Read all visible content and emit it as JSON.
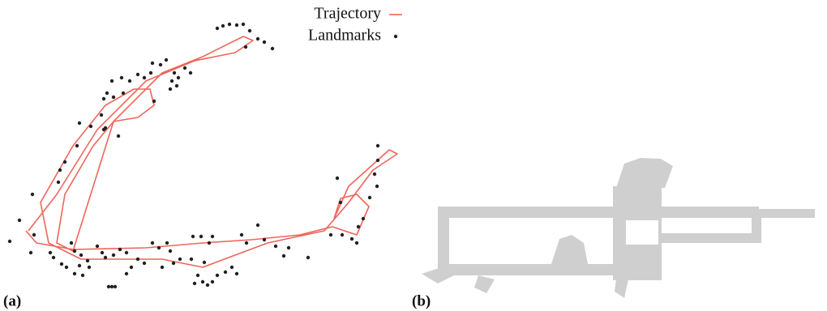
{
  "panels": [
    {
      "label": "(a)"
    },
    {
      "label": "(b)"
    }
  ],
  "chart_data": {
    "type": "scatter",
    "legend": "upper right",
    "xlim": [
      0,
      500
    ],
    "ylim": [
      384,
      0
    ],
    "series": [
      {
        "name": "Trajectory",
        "color": "#f0655a",
        "type": "line",
        "x": [
          32,
          45,
          90,
          180,
          250,
          310,
          370,
          410,
          440,
          455,
          440,
          420,
          412,
          430,
          480,
          490,
          460,
          430,
          400,
          330,
          250,
          200,
          150,
          100,
          60,
          50,
          90,
          130,
          165,
          185,
          190,
          170,
          140,
          115,
          80,
          70,
          90,
          140,
          200,
          250,
          300,
          312,
          290,
          240,
          180,
          120,
          70,
          35
        ],
        "y": [
          285,
          300,
          308,
          306,
          300,
          296,
          290,
          280,
          290,
          255,
          240,
          245,
          270,
          230,
          185,
          190,
          210,
          250,
          285,
          300,
          330,
          320,
          320,
          320,
          300,
          250,
          180,
          130,
          110,
          110,
          130,
          145,
          150,
          180,
          240,
          300,
          310,
          150,
          90,
          70,
          45,
          50,
          65,
          75,
          100,
          160,
          240,
          285
        ]
      },
      {
        "name": "Landmarks",
        "color": "#222222",
        "type": "scatter",
        "x": [
          268,
          275,
          283,
          292,
          300,
          308,
          318,
          326,
          336,
          303,
          205,
          198,
          188,
          186,
          178,
          170,
          160,
          150,
          138,
          132,
          128,
          140,
          152,
          215,
          212,
          220,
          228,
          235,
          210,
          218,
          190,
          125,
          130,
          128,
          112,
          146,
          98,
          95,
          80,
          74,
          72,
          40,
          24,
          42,
          12,
          38,
          62,
          88,
          92,
          100,
          108,
          98,
          82,
          120,
          126,
          130,
          140,
          148,
          156,
          170,
          188,
          196,
          206,
          210,
          222,
          238,
          248,
          258,
          262,
          298,
          304,
          318,
          326,
          340,
          356,
          350,
          380,
          66,
          76,
          92,
          102,
          110,
          134,
          138,
          142,
          156,
          162,
          178,
          200,
          214,
          244,
          240,
          250,
          256,
          262,
          268,
          278,
          286,
          292,
          236,
          252,
          466,
          466,
          462,
          465,
          456,
          416,
          420,
          448,
          442,
          434,
          422,
          408,
          440
        ],
        "y": [
          35,
          32,
          30,
          31,
          30,
          38,
          48,
          52,
          60,
          58,
          74,
          80,
          78,
          90,
          96,
          92,
          100,
          96,
          100,
          115,
          122,
          120,
          115,
          90,
          100,
          96,
          84,
          90,
          110,
          106,
          125,
          142,
          158,
          160,
          156,
          168,
          152,
          180,
          200,
          210,
          225,
          240,
          272,
          290,
          298,
          312,
          312,
          300,
          310,
          315,
          322,
          328,
          330,
          304,
          312,
          318,
          315,
          308,
          312,
          320,
          300,
          306,
          300,
          310,
          320,
          292,
          292,
          300,
          292,
          290,
          300,
          278,
          296,
          304,
          306,
          316,
          318,
          318,
          326,
          338,
          340,
          330,
          354,
          354,
          354,
          338,
          330,
          325,
          330,
          325,
          340,
          350,
          348,
          352,
          348,
          340,
          336,
          330,
          338,
          320,
          324,
          180,
          198,
          215,
          230,
          244,
          220,
          250,
          270,
          280,
          295,
          290,
          290,
          300
        ]
      }
    ]
  }
}
